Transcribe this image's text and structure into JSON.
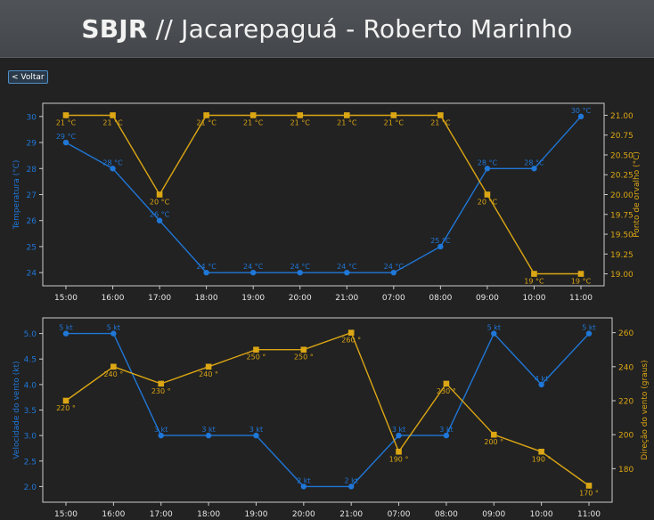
{
  "header": {
    "code": "SBJR",
    "separator": " // ",
    "name": "Jacarepaguá - Roberto Marinho"
  },
  "back_button": {
    "label": "< Voltar"
  },
  "colors": {
    "temperature": "#1f77d8",
    "dew_point": "#dba614",
    "axis": "#cccccc",
    "background": "#222222"
  },
  "chart_data": [
    {
      "type": "line",
      "categories": [
        "15:00",
        "16:00",
        "17:00",
        "18:00",
        "19:00",
        "20:00",
        "21:00",
        "07:00",
        "08:00",
        "09:00",
        "10:00",
        "11:00"
      ],
      "series": [
        {
          "name": "Temperatura (°C)",
          "axis": "left",
          "marker": "circle",
          "color": "#1f77d8",
          "values": [
            29,
            28,
            26,
            24,
            24,
            24,
            24,
            24,
            25,
            28,
            28,
            30
          ],
          "labels": [
            "29 °C",
            "28 °C",
            "26 °C",
            "24 °C",
            "24 °C",
            "24 °C",
            "24 °C",
            "24 °C",
            "25 °C",
            "28 °C",
            "28 °C",
            "30 °C"
          ]
        },
        {
          "name": "Ponto de orvalho (°C)",
          "axis": "right",
          "marker": "square",
          "color": "#dba614",
          "values": [
            21,
            21,
            20,
            21,
            21,
            21,
            21,
            21,
            21,
            20,
            19,
            19
          ],
          "labels": [
            "21 °C",
            "21 °C",
            "20 °C",
            "21 °C",
            "21 °C",
            "21 °C",
            "21 °C",
            "21 °C",
            "21 °C",
            "20 °C",
            "19 °C",
            "19 °C"
          ]
        }
      ],
      "y_left": {
        "label": "Temperatura (°C)",
        "ticks": [
          "24",
          "25",
          "26",
          "27",
          "28",
          "29",
          "30"
        ],
        "range": [
          23.8,
          30.2
        ]
      },
      "y_right": {
        "label": "Ponto de orvalho (°C)",
        "ticks": [
          "19.00",
          "19.25",
          "19.50",
          "19.75",
          "20.00",
          "20.25",
          "20.50",
          "20.75",
          "21.00"
        ],
        "range": [
          18.95,
          21.05
        ]
      },
      "grid": false
    },
    {
      "type": "line",
      "categories": [
        "15:00",
        "16:00",
        "17:00",
        "18:00",
        "19:00",
        "20:00",
        "21:00",
        "07:00",
        "08:00",
        "09:00",
        "10:00",
        "11:00"
      ],
      "series": [
        {
          "name": "Velocidade do vento (kt)",
          "axis": "left",
          "marker": "circle",
          "color": "#1f77d8",
          "values": [
            5,
            5,
            3,
            3,
            3,
            2,
            2,
            3,
            3,
            5,
            4,
            5
          ],
          "labels": [
            "5 kt",
            "5 kt",
            "3 kt",
            "3 kt",
            "3 kt",
            "2 kt",
            "2 kt",
            "3 kt",
            "3 kt",
            "5 kt",
            "4 kt",
            "5 kt"
          ]
        },
        {
          "name": "Direção do vento (graus)",
          "axis": "right",
          "marker": "square",
          "color": "#dba614",
          "values": [
            220,
            240,
            230,
            240,
            250,
            250,
            260,
            190,
            230,
            200,
            190,
            170
          ],
          "labels": [
            "220 °",
            "240 °",
            "230 °",
            "240 °",
            "250 °",
            "250 °",
            "260 °",
            "190 °",
            "230 °",
            "200 °",
            "190 °",
            "170 °"
          ]
        }
      ],
      "y_left": {
        "label": "Velocidade do vento (kt)",
        "ticks": [
          "2.0",
          "2.5",
          "3.0",
          "3.5",
          "4.0",
          "4.5",
          "5.0"
        ],
        "range": [
          1.85,
          5.15
        ]
      },
      "y_right": {
        "label": "Direção do vento (graus)",
        "ticks": [
          "180",
          "200",
          "220",
          "240",
          "260"
        ],
        "range": [
          165,
          264
        ]
      },
      "grid": false
    }
  ]
}
